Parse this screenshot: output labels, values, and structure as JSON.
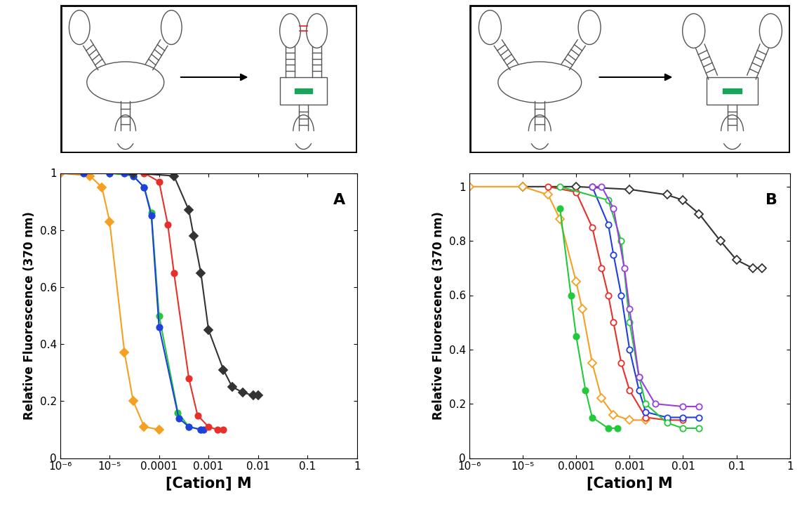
{
  "chart_data": [
    {
      "type": "line",
      "annotations": [
        "A"
      ],
      "log": "x",
      "xlabel": "[Cation] M",
      "ylabel": "Relative Fluorescence (370 nm)",
      "xlim": [
        1e-06,
        1
      ],
      "ylim": [
        0,
        1
      ],
      "xticks": [
        {
          "value": 1e-06,
          "label": "10⁻⁶"
        },
        {
          "value": 1e-05,
          "label": "10⁻⁵"
        },
        0.0001,
        0.001,
        0.01,
        0.1,
        1
      ],
      "yticks": [
        0,
        0.2,
        0.4,
        0.6,
        0.8,
        1
      ],
      "series": [
        {
          "color": "#f5a020",
          "marker": "diamond",
          "x": [
            1e-06,
            4e-06,
            7e-06,
            1e-05,
            2e-05,
            3e-05,
            5e-05,
            0.0001
          ],
          "values": [
            1.0,
            0.99,
            0.95,
            0.83,
            0.37,
            0.2,
            0.11,
            0.1
          ]
        },
        {
          "color": "#22c93a",
          "marker": "circle",
          "x": [
            1e-05,
            3e-05,
            5e-05,
            7e-05,
            0.0001,
            0.00024,
            0.0004,
            0.0007
          ],
          "values": [
            1.0,
            0.99,
            0.95,
            0.86,
            0.5,
            0.16,
            0.11,
            0.1
          ]
        },
        {
          "color": "#1f3fe0",
          "marker": "circle",
          "x": [
            3e-06,
            1e-05,
            2e-05,
            3e-05,
            5e-05,
            7e-05,
            0.0001,
            0.00025,
            0.0004,
            0.0007,
            0.0008
          ],
          "values": [
            1.0,
            1.0,
            1.0,
            0.99,
            0.95,
            0.85,
            0.46,
            0.14,
            0.11,
            0.1,
            0.1
          ]
        },
        {
          "color": "#e8302a",
          "marker": "circle",
          "x": [
            5e-05,
            0.0001,
            0.00015,
            0.0002,
            0.0004,
            0.0006,
            0.001,
            0.0015,
            0.002
          ],
          "values": [
            1.0,
            0.97,
            0.82,
            0.65,
            0.28,
            0.15,
            0.11,
            0.1,
            0.1
          ]
        },
        {
          "color": "#333333",
          "marker": "diamond",
          "x": [
            3e-05,
            0.0002,
            0.0004,
            0.0005,
            0.0007,
            0.001,
            0.002,
            0.003,
            0.005,
            0.008,
            0.01
          ],
          "values": [
            1.0,
            0.99,
            0.87,
            0.78,
            0.65,
            0.45,
            0.31,
            0.25,
            0.23,
            0.22,
            0.22
          ]
        }
      ]
    },
    {
      "type": "line",
      "annotations": [
        "B"
      ],
      "log": "x",
      "xlabel": "[Cation] M",
      "ylabel": "Relative Fluorescence (370 nm)",
      "xlim": [
        1e-06,
        1
      ],
      "ylim": [
        0,
        1.05
      ],
      "xticks": [
        {
          "value": 1e-06,
          "label": "10⁻⁶"
        },
        {
          "value": 1e-05,
          "label": "10⁻⁵"
        },
        0.0001,
        0.001,
        0.01,
        0.1,
        1
      ],
      "yticks": [
        0,
        0.2,
        0.4,
        0.6,
        0.8,
        1
      ],
      "series": [
        {
          "color": "#333333",
          "marker": "open_diamond",
          "x": [
            1e-05,
            0.0001,
            0.001,
            0.005,
            0.01,
            0.02,
            0.05,
            0.1,
            0.2,
            0.3
          ],
          "values": [
            1.0,
            1.0,
            0.99,
            0.97,
            0.95,
            0.9,
            0.8,
            0.73,
            0.7,
            0.7
          ]
        },
        {
          "color": "#f5a020",
          "marker": "open_diamond",
          "x": [
            1e-06,
            1e-05,
            3e-05,
            5e-05,
            0.0001,
            0.00013,
            0.0002,
            0.0003,
            0.0005,
            0.001,
            0.002
          ],
          "values": [
            1.0,
            1.0,
            0.97,
            0.88,
            0.65,
            0.55,
            0.35,
            0.22,
            0.16,
            0.14,
            0.14
          ]
        },
        {
          "color": "#22c93a",
          "marker": "circle",
          "x": [
            5e-05,
            8e-05,
            0.0001,
            0.00015,
            0.0002,
            0.0004,
            0.0006
          ],
          "values": [
            0.92,
            0.6,
            0.45,
            0.25,
            0.15,
            0.11,
            0.11
          ]
        },
        {
          "color": "#e8302a",
          "marker": "open_circle",
          "x": [
            3e-05,
            0.0001,
            0.0002,
            0.0003,
            0.0004,
            0.0005,
            0.0007,
            0.001,
            0.002,
            0.005,
            0.01
          ],
          "values": [
            1.0,
            0.98,
            0.85,
            0.7,
            0.6,
            0.5,
            0.35,
            0.25,
            0.15,
            0.14,
            0.14
          ]
        },
        {
          "color": "#1f3fe0",
          "marker": "open_circle",
          "x": [
            0.0002,
            0.0004,
            0.0005,
            0.0007,
            0.001,
            0.0015,
            0.002,
            0.005,
            0.01,
            0.02
          ],
          "values": [
            1.0,
            0.86,
            0.75,
            0.6,
            0.4,
            0.25,
            0.17,
            0.15,
            0.15,
            0.15
          ]
        },
        {
          "color": "#22c93a",
          "marker": "open_circle",
          "x": [
            5e-05,
            0.0004,
            0.0007,
            0.001,
            0.0015,
            0.002,
            0.005,
            0.01,
            0.02
          ],
          "values": [
            1.0,
            0.95,
            0.8,
            0.5,
            0.3,
            0.2,
            0.13,
            0.11,
            0.11
          ]
        },
        {
          "color": "#9b3fe0",
          "marker": "open_circle",
          "x": [
            0.0002,
            0.0003,
            0.0005,
            0.0008,
            0.001,
            0.0015,
            0.003,
            0.01,
            0.02
          ],
          "values": [
            1.0,
            1.0,
            0.92,
            0.7,
            0.55,
            0.3,
            0.2,
            0.19,
            0.19
          ]
        }
      ]
    }
  ]
}
